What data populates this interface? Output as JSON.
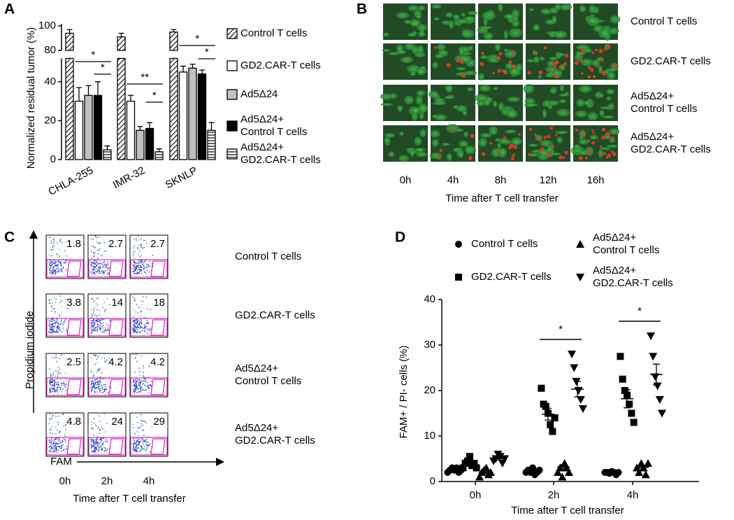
{
  "panel_labels": [
    "A",
    "B",
    "C",
    "D"
  ],
  "chart_data": [
    {
      "type": "bar",
      "ylabel": "Normalized residual tumor (%)",
      "categories": [
        "CHLA-255",
        "IMR-32",
        "SKNLP"
      ],
      "series": [
        {
          "name": "Control T cells",
          "pattern": "diagonal",
          "color": "#000000",
          "values": [
            94,
            91,
            95
          ],
          "errors": [
            3,
            3,
            2
          ]
        },
        {
          "name": "GD2.CAR-T cells",
          "pattern": "solid",
          "color": "#ffffff",
          "values": [
            30,
            30,
            45
          ],
          "errors": [
            7,
            3,
            3
          ]
        },
        {
          "name": "Ad5Δ24",
          "pattern": "solid",
          "color": "#c0c0c0",
          "values": [
            33,
            15,
            47
          ],
          "errors": [
            5,
            2,
            2
          ]
        },
        {
          "name": "Ad5Δ24+\nControl T cells",
          "pattern": "solid",
          "color": "#000000",
          "values": [
            33,
            16,
            44
          ],
          "errors": [
            7,
            3,
            2
          ]
        },
        {
          "name": "Ad5Δ24+\nGD2.CAR-T cells",
          "pattern": "horizontal",
          "color": "#000000",
          "values": [
            5,
            4,
            15
          ],
          "errors": [
            2,
            1.5,
            4
          ]
        }
      ],
      "ylim": [
        0,
        100
      ],
      "yticks": [
        0,
        20,
        40,
        80,
        100
      ],
      "axis_break": [
        52,
        80
      ],
      "annotations": [
        "*",
        "*",
        "**",
        "*",
        "*",
        "*"
      ]
    },
    {
      "type": "scatter",
      "ylabel": "FAM+ / PI- cells (%)",
      "xlabel": "Time after T cell transfer",
      "categories": [
        "0h",
        "2h",
        "4h"
      ],
      "ylim": [
        0,
        40
      ],
      "yticks": [
        0,
        10,
        20,
        30,
        40
      ],
      "series": [
        {
          "name": "Control T cells",
          "marker": "circle",
          "color": "#000000",
          "values": [
            [
              2,
              2.5,
              3,
              2.5,
              3,
              2,
              2.5
            ],
            [
              2,
              2.5,
              2,
              3,
              1.5,
              2,
              2.5
            ],
            [
              2,
              2,
              1.8,
              2.2,
              2,
              1.5,
              2
            ]
          ],
          "means": [
            2.5,
            2.2,
            2
          ],
          "errors": [
            0.3,
            0.2,
            0.1
          ]
        },
        {
          "name": "GD2.CAR-T cells",
          "marker": "square",
          "color": "#000000",
          "values": [
            [
              3,
              4,
              4.5,
              5.5,
              3.5,
              4,
              3
            ],
            [
              20.5,
              17,
              16.5,
              15,
              12.5,
              11,
              14
            ],
            [
              27.5,
              22.5,
              20,
              19,
              17,
              15,
              13
            ]
          ],
          "means": [
            3.8,
            14.8,
            18.2
          ],
          "errors": [
            0.4,
            1.3,
            2
          ]
        },
        {
          "name": "Ad5Δ24+\nControl T cells",
          "marker": "triangle",
          "color": "#000000",
          "values": [
            [
              1,
              2,
              2.5,
              3,
              1.5,
              2
            ],
            [
              2,
              3,
              1,
              4,
              3,
              2
            ],
            [
              3,
              2,
              4,
              3,
              1.5,
              4
            ]
          ],
          "means": [
            2,
            3.2,
            3.1
          ],
          "errors": [
            0.3,
            0.5,
            0.4
          ]
        },
        {
          "name": "Ad5Δ24+\nGD2.CAR-T cells",
          "marker": "triangle-down",
          "color": "#000000",
          "values": [
            [
              4.5,
              5,
              6,
              5.5,
              4,
              5
            ],
            [
              28,
              25,
              22,
              20,
              18,
              16
            ],
            [
              32,
              27.5,
              23,
              21,
              18,
              15
            ]
          ],
          "means": [
            5.1,
            20.3,
            23.5
          ],
          "errors": [
            0.4,
            1.7,
            2.3
          ]
        }
      ],
      "annotations": [
        "*",
        "*"
      ]
    }
  ],
  "panel_b": {
    "rows": [
      "Control T cells",
      "GD2.CAR-T cells",
      "Ad5Δ24+\nControl T cells",
      "Ad5Δ24+\nGD2.CAR-T cells"
    ],
    "columns": [
      "0h",
      "4h",
      "8h",
      "12h",
      "16h"
    ],
    "xlabel": "Time after T cell transfer"
  },
  "panel_c": {
    "rows": [
      "Control T cells",
      "GD2.CAR-T cells",
      "Ad5Δ24+\nControl T cells",
      "Ad5Δ24+\nGD2.CAR-T cells"
    ],
    "columns": [
      "0h",
      "2h",
      "4h"
    ],
    "ylabel": "Propidium iodide",
    "xaxis": "FAM",
    "xlabel": "Time after T cell transfer",
    "percentages": [
      [
        1.8,
        2.7,
        2.7
      ],
      [
        3.8,
        14,
        18
      ],
      [
        2.5,
        4.2,
        4.2
      ],
      [
        4.8,
        24,
        29
      ]
    ]
  }
}
